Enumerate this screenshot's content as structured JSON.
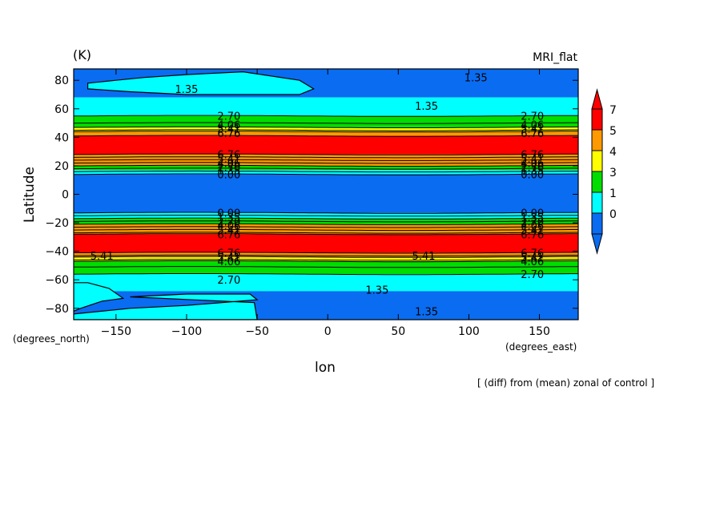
{
  "chart_data": {
    "type": "heatmap",
    "title_left": "(K)",
    "title_right": "MRI_flat",
    "xlabel": "lon",
    "ylabel": "Latitude",
    "x_units": "(degrees_east)",
    "y_units": "(degrees_north)",
    "footnote": "[ (diff) from (mean) zonal of control ]",
    "xlim": [
      -180,
      177.5
    ],
    "ylim": [
      -88,
      88
    ],
    "x_ticks": [
      -150,
      -100,
      -50,
      0,
      50,
      100,
      150
    ],
    "x_tick_labels": [
      "−150",
      "−100",
      "−50",
      "0",
      "50",
      "100",
      "150"
    ],
    "y_ticks": [
      -80,
      -60,
      -40,
      -20,
      0,
      20,
      40,
      60,
      80
    ],
    "y_tick_labels": [
      "−80",
      "−60",
      "−40",
      "−20",
      "0",
      "20",
      "40",
      "60",
      "80"
    ],
    "colorbar": {
      "levels": [
        0,
        1,
        3,
        4,
        5,
        7
      ],
      "labels": [
        "0",
        "1",
        "3",
        "4",
        "5",
        "7"
      ],
      "colors": [
        "#0a6cf0",
        "#00ffff",
        "#00dd00",
        "#ffff00",
        "#ff9900",
        "#ff0000"
      ],
      "below_color": "#0a6cf0",
      "above_color": "#ff0000"
    },
    "bands": [
      {
        "lat_from": 88,
        "lat_to": 68,
        "color": "#0a6cf0"
      },
      {
        "lat_from": 68,
        "lat_to": 55,
        "color": "#00ffff"
      },
      {
        "lat_from": 55,
        "lat_to": 47,
        "color": "#00dd00"
      },
      {
        "lat_from": 47,
        "lat_to": 44,
        "color": "#ffff00"
      },
      {
        "lat_from": 44,
        "lat_to": 41,
        "color": "#ff9900"
      },
      {
        "lat_from": 41,
        "lat_to": 28,
        "color": "#ff0000"
      },
      {
        "lat_from": 28,
        "lat_to": 20,
        "color": "#ff9900"
      },
      {
        "lat_from": 20,
        "lat_to": 17,
        "color": "#00dd00"
      },
      {
        "lat_from": 17,
        "lat_to": 14,
        "color": "#00ffff"
      },
      {
        "lat_from": 14,
        "lat_to": -13,
        "color": "#0a6cf0"
      },
      {
        "lat_from": -13,
        "lat_to": -17,
        "color": "#00ffff"
      },
      {
        "lat_from": -17,
        "lat_to": -21,
        "color": "#00dd00"
      },
      {
        "lat_from": -21,
        "lat_to": -28,
        "color": "#ff9900"
      },
      {
        "lat_from": -28,
        "lat_to": -41,
        "color": "#ff0000"
      },
      {
        "lat_from": -41,
        "lat_to": -44,
        "color": "#ff9900"
      },
      {
        "lat_from": -44,
        "lat_to": -47,
        "color": "#ffff00"
      },
      {
        "lat_from": -47,
        "lat_to": -56,
        "color": "#00dd00"
      },
      {
        "lat_from": -56,
        "lat_to": -68,
        "color": "#00ffff"
      },
      {
        "lat_from": -68,
        "lat_to": -88,
        "color": "#0a6cf0"
      }
    ],
    "contour_lines": [
      {
        "lat": 55
      },
      {
        "lat": 50
      },
      {
        "lat": 47
      },
      {
        "lat": 45
      },
      {
        "lat": 44
      },
      {
        "lat": 41
      },
      {
        "lat": 28
      },
      {
        "lat": 26
      },
      {
        "lat": 24
      },
      {
        "lat": 22
      },
      {
        "lat": 20
      },
      {
        "lat": 18
      },
      {
        "lat": 16
      },
      {
        "lat": 14
      },
      {
        "lat": -13
      },
      {
        "lat": -15
      },
      {
        "lat": -17
      },
      {
        "lat": -19
      },
      {
        "lat": -21
      },
      {
        "lat": -23
      },
      {
        "lat": -25
      },
      {
        "lat": -27
      },
      {
        "lat": -28
      },
      {
        "lat": -41
      },
      {
        "lat": -43
      },
      {
        "lat": -44
      },
      {
        "lat": -46
      },
      {
        "lat": -47
      },
      {
        "lat": -51
      },
      {
        "lat": -56
      }
    ],
    "regions": [
      {
        "name": "north-polar-patch",
        "color": "#00ffff",
        "points": [
          [
            -170,
            78
          ],
          [
            -150,
            80
          ],
          [
            -130,
            82
          ],
          [
            -100,
            84
          ],
          [
            -60,
            86
          ],
          [
            -20,
            80
          ],
          [
            -10,
            74
          ],
          [
            -20,
            70
          ],
          [
            -60,
            70
          ],
          [
            -100,
            70
          ],
          [
            -140,
            72
          ],
          [
            -170,
            74
          ]
        ]
      },
      {
        "name": "south-polar-patch-west",
        "color": "#00ffff",
        "points": [
          [
            -180,
            -62
          ],
          [
            -170,
            -62
          ],
          [
            -155,
            -66
          ],
          [
            -145,
            -73
          ],
          [
            -160,
            -75
          ],
          [
            -175,
            -80
          ],
          [
            -180,
            -82
          ]
        ]
      },
      {
        "name": "south-polar-patch-mid",
        "color": "#00ffff",
        "points": [
          [
            -140,
            -72
          ],
          [
            -100,
            -70
          ],
          [
            -55,
            -70
          ],
          [
            -50,
            -74
          ],
          [
            -100,
            -78
          ],
          [
            -140,
            -80
          ],
          [
            -180,
            -84
          ],
          [
            -180,
            -88
          ],
          [
            -50,
            -88
          ],
          [
            -52,
            -76
          ]
        ]
      }
    ],
    "contour_labels": [
      {
        "text": "1.35",
        "lon": -100,
        "lat": 74
      },
      {
        "text": "1.35",
        "lon": 105,
        "lat": 82
      },
      {
        "text": "1.35",
        "lon": 70,
        "lat": 62
      },
      {
        "text": "2.70",
        "lon": -70,
        "lat": 55
      },
      {
        "text": "4.06",
        "lon": -70,
        "lat": 49
      },
      {
        "text": "5.41",
        "lon": -70,
        "lat": 46
      },
      {
        "text": "6.76",
        "lon": -70,
        "lat": 43
      },
      {
        "text": "2.70",
        "lon": 145,
        "lat": 55
      },
      {
        "text": "4.06",
        "lon": 145,
        "lat": 49
      },
      {
        "text": "5.41",
        "lon": 145,
        "lat": 46
      },
      {
        "text": "6.76",
        "lon": 145,
        "lat": 43
      },
      {
        "text": "6.76",
        "lon": -70,
        "lat": 28
      },
      {
        "text": "5.41",
        "lon": -70,
        "lat": 25
      },
      {
        "text": "4.06",
        "lon": -70,
        "lat": 22
      },
      {
        "text": "2.70",
        "lon": -70,
        "lat": 19
      },
      {
        "text": "1.35",
        "lon": -70,
        "lat": 17
      },
      {
        "text": "0.00",
        "lon": -70,
        "lat": 14
      },
      {
        "text": "6.76",
        "lon": 145,
        "lat": 28
      },
      {
        "text": "5.41",
        "lon": 145,
        "lat": 25
      },
      {
        "text": "4.06",
        "lon": 145,
        "lat": 22
      },
      {
        "text": "2.70",
        "lon": 145,
        "lat": 19
      },
      {
        "text": "1.35",
        "lon": 145,
        "lat": 17
      },
      {
        "text": "0.00",
        "lon": 145,
        "lat": 14
      },
      {
        "text": "0.00",
        "lon": -70,
        "lat": -13
      },
      {
        "text": "1.35",
        "lon": -70,
        "lat": -16
      },
      {
        "text": "2.70",
        "lon": -70,
        "lat": -19
      },
      {
        "text": "4.06",
        "lon": -70,
        "lat": -22
      },
      {
        "text": "5.41",
        "lon": -70,
        "lat": -25
      },
      {
        "text": "6.76",
        "lon": -70,
        "lat": -28
      },
      {
        "text": "0.00",
        "lon": 145,
        "lat": -13
      },
      {
        "text": "1.35",
        "lon": 145,
        "lat": -16
      },
      {
        "text": "2.70",
        "lon": 145,
        "lat": -19
      },
      {
        "text": "4.06",
        "lon": 145,
        "lat": -22
      },
      {
        "text": "5.41",
        "lon": 145,
        "lat": -25
      },
      {
        "text": "6.76",
        "lon": 145,
        "lat": -28
      },
      {
        "text": "5.41",
        "lon": -160,
        "lat": -43
      },
      {
        "text": "5.41",
        "lon": 68,
        "lat": -43
      },
      {
        "text": "6.76",
        "lon": -70,
        "lat": -41
      },
      {
        "text": "5.41",
        "lon": -70,
        "lat": -44
      },
      {
        "text": "4.06",
        "lon": -70,
        "lat": -47
      },
      {
        "text": "6.76",
        "lon": 145,
        "lat": -41
      },
      {
        "text": "5.41",
        "lon": 145,
        "lat": -44
      },
      {
        "text": "4.06",
        "lon": 145,
        "lat": -47
      },
      {
        "text": "2.70",
        "lon": -70,
        "lat": -60
      },
      {
        "text": "2.70",
        "lon": 145,
        "lat": -56
      },
      {
        "text": "1.35",
        "lon": 35,
        "lat": -67
      },
      {
        "text": "1.35",
        "lon": 70,
        "lat": -82
      }
    ]
  }
}
